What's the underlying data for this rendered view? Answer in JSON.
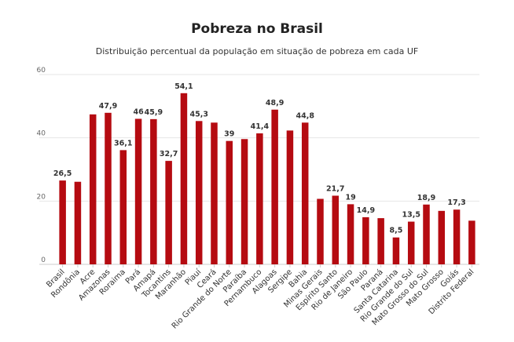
{
  "title": "Pobreza no Brasil",
  "subtitle": "Distribuição percentual da população em situação de pobreza em cada UF",
  "colors": {
    "bar": "#b50b11",
    "grid": "#e6e6e6",
    "axis": "#cccccc"
  },
  "chart_data": {
    "type": "bar",
    "title": "Pobreza no Brasil",
    "subtitle": "Distribuição percentual da população em situação de pobreza em cada UF",
    "xlabel": "",
    "ylabel": "",
    "ylim": [
      0,
      60
    ],
    "yticks": [
      0,
      20,
      40,
      60
    ],
    "grid": true,
    "legend": "none",
    "categories": [
      "Brasil",
      "Rondônia",
      "Acre",
      "Amazonas",
      "Roraima",
      "Pará",
      "Amapá",
      "Tocantins",
      "Maranhão",
      "Piauí",
      "Ceará",
      "Rio Grande do Norte",
      "Paraíba",
      "Pernambuco",
      "Alagoas",
      "Sergipe",
      "Bahia",
      "Minas Gerais",
      "Espírito Santo",
      "Rio de Janeiro",
      "São Paulo",
      "Paraná",
      "Santa Catarina",
      "Rio Grande do Sul",
      "Mato Grosso do Sul",
      "Mato Grosso",
      "Goiás",
      "Distrito Federal"
    ],
    "values": [
      26.5,
      26.1,
      47.4,
      47.9,
      36.1,
      46,
      45.9,
      32.7,
      54.1,
      45.3,
      44.8,
      39,
      39.6,
      41.4,
      48.9,
      42.3,
      44.8,
      20.7,
      21.7,
      19,
      14.9,
      14.6,
      8.5,
      13.5,
      18.9,
      16.9,
      17.3,
      13.8
    ],
    "data_labels": [
      "26,5",
      "",
      "",
      "47,9",
      "36,1",
      "46",
      "45,9",
      "32,7",
      "54,1",
      "45,3",
      "",
      "39",
      "",
      "41,4",
      "48,9",
      "",
      "44,8",
      "",
      "21,7",
      "19",
      "14,9",
      "",
      "8,5",
      "13,5",
      "18,9",
      "",
      "17,3",
      ""
    ]
  }
}
